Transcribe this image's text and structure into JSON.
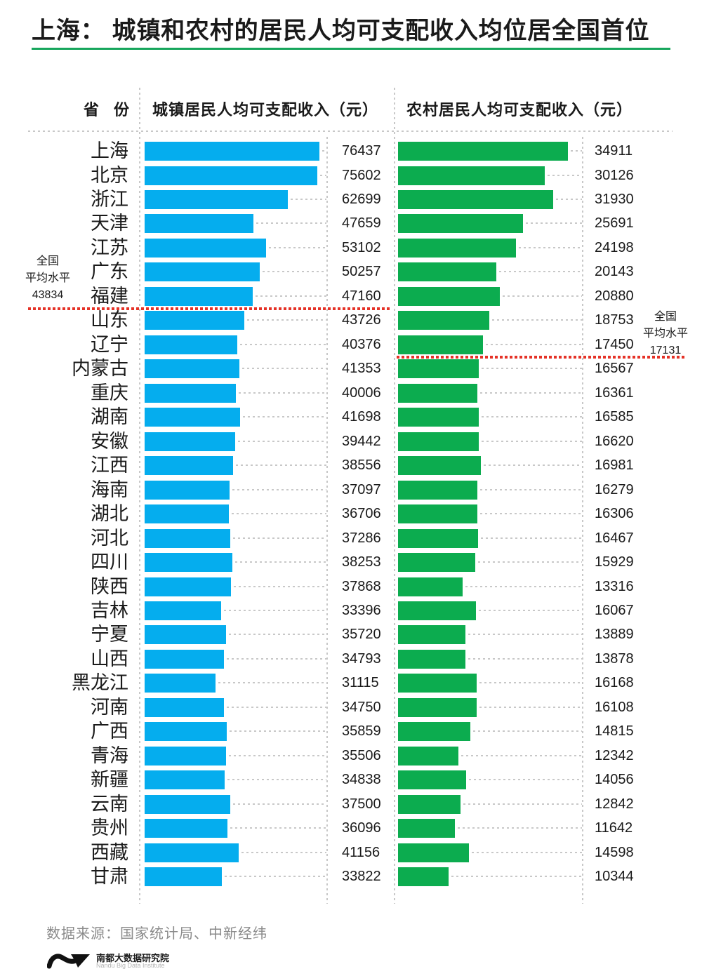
{
  "title": "上海： 城镇和农村的居民人均可支配收入均位居全国首位",
  "colors": {
    "urban_bar": "#05adee",
    "rural_bar": "#0cac4f",
    "title_rule": "#17a65c",
    "average_line": "#e53227"
  },
  "columns": {
    "province": "省份",
    "urban": "城镇居民人均可支配收入（元）",
    "rural": "农村居民人均可支配收入（元）"
  },
  "chart_data": {
    "type": "bar",
    "orientation": "horizontal",
    "categories": [
      "上海",
      "北京",
      "浙江",
      "天津",
      "江苏",
      "广东",
      "福建",
      "山东",
      "辽宁",
      "内蒙古",
      "重庆",
      "湖南",
      "安徽",
      "江西",
      "海南",
      "湖北",
      "河北",
      "四川",
      "陕西",
      "吉林",
      "宁夏",
      "山西",
      "黑龙江",
      "河南",
      "广西",
      "青海",
      "新疆",
      "云南",
      "贵州",
      "西藏",
      "甘肃"
    ],
    "series": [
      {
        "name": "城镇居民人均可支配收入（元）",
        "values": [
          76437,
          75602,
          62699,
          47659,
          53102,
          50257,
          47160,
          43726,
          40376,
          41353,
          40006,
          41698,
          39442,
          38556,
          37097,
          36706,
          37286,
          38253,
          37868,
          33396,
          35720,
          34793,
          31115,
          34750,
          35859,
          35506,
          34838,
          37500,
          36096,
          41156,
          33822
        ]
      },
      {
        "name": "农村居民人均可支配收入（元）",
        "values": [
          34911,
          30126,
          31930,
          25691,
          24198,
          20143,
          20880,
          18753,
          17450,
          16567,
          16361,
          16585,
          16620,
          16981,
          16279,
          16306,
          16467,
          15929,
          13316,
          16067,
          13889,
          13878,
          16168,
          16108,
          14815,
          12342,
          14056,
          12842,
          11642,
          14598,
          10344
        ]
      }
    ],
    "annotations": [
      {
        "id": "urban_average",
        "line1": "全国",
        "line2": "平均水平",
        "value": "43834",
        "after_category": "福建"
      },
      {
        "id": "rural_average",
        "line1": "全国",
        "line2": "平均水平",
        "value": "17131",
        "after_category": "辽宁"
      }
    ]
  },
  "source": "数据来源：国家统计局、中新经纬",
  "logo": {
    "cn": "南都大数据研究院",
    "en": "Nandu Big Data Institute"
  }
}
